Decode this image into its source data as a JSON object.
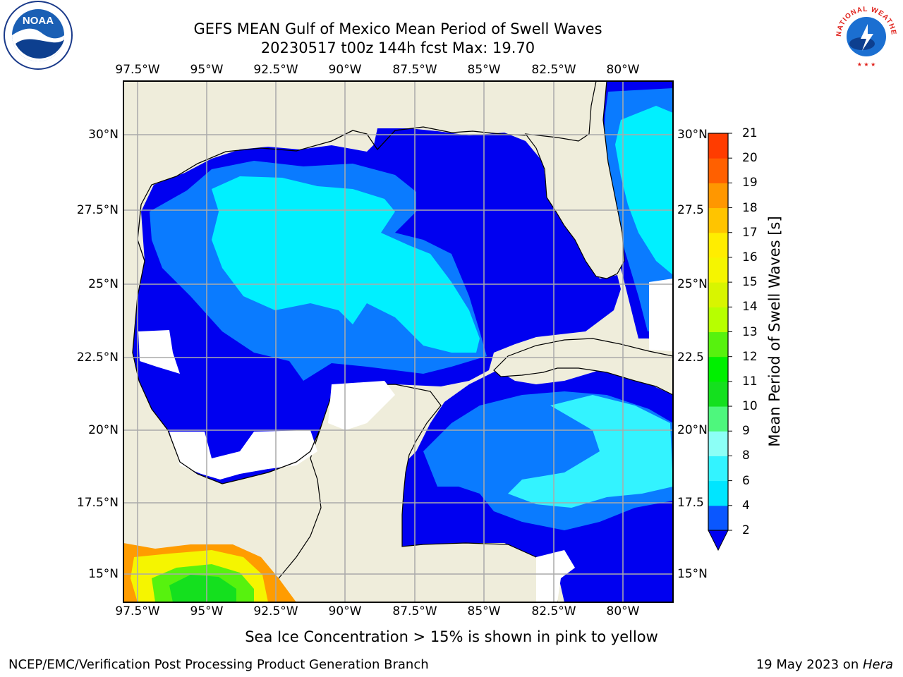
{
  "title_line1": "GEFS MEAN Gulf of Mexico Mean Period of Swell Waves",
  "title_line2": "20230517 t00z 144h fcst   Max: 19.70",
  "lon_ticks": [
    "97.5°W",
    "95°W",
    "92.5°W",
    "90°W",
    "87.5°W",
    "85°W",
    "82.5°W",
    "80°W"
  ],
  "lat_ticks_left": [
    "30°N",
    "27.5°N",
    "25°N",
    "22.5°N",
    "20°N",
    "17.5°N",
    "15°N"
  ],
  "lat_ticks_right": [
    "30°N",
    "27.5",
    "25°N",
    "22.5",
    "20°N",
    "17.5",
    "15°N"
  ],
  "colorbar": {
    "label": "Mean Period of Swell Waves [s]",
    "ticks": [
      "2",
      "4",
      "6",
      "8",
      "9",
      "10",
      "11",
      "12",
      "13",
      "14",
      "15",
      "16",
      "17",
      "18",
      "19",
      "20",
      "21"
    ],
    "colors": [
      "#0a57ff",
      "#00e5ff",
      "#33f3ff",
      "#8cfff6",
      "#4ef77d",
      "#14e01e",
      "#00f000",
      "#57f20e",
      "#b7ff00",
      "#d8f500",
      "#f5f500",
      "#ffed00",
      "#ffc400",
      "#ff9700",
      "#ff6000",
      "#ff3c00"
    ],
    "extend_color": "#0000f0"
  },
  "caption": "Sea Ice Concentration > 15% is shown in pink to yellow",
  "footer_left": "NCEP/EMC/Verification Post Processing Product Generation Branch",
  "footer_right_prefix": "19 May 2023 on ",
  "footer_right_host": "Hera",
  "logos": {
    "noaa_text": "NOAA",
    "nws_text": "NATIONAL WEATHER SERVICE"
  },
  "colors": {
    "land": "#efeddb",
    "ocean_blue": "#0000f0",
    "mid_blue": "#0a7bff",
    "cyan": "#00f0ff",
    "grid": "#aaaaaa"
  }
}
